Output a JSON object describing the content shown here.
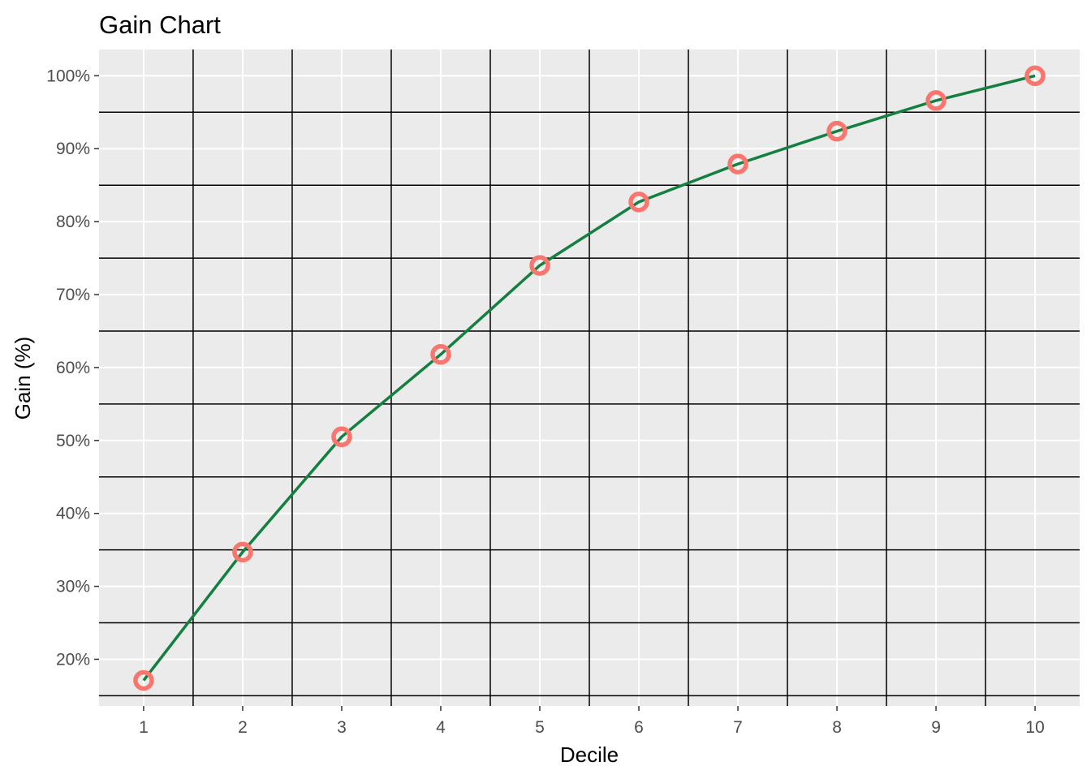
{
  "chart_data": {
    "type": "line",
    "title": "Gain Chart",
    "xlabel": "Decile",
    "ylabel": "Gain (%)",
    "x": [
      1,
      2,
      3,
      4,
      5,
      6,
      7,
      8,
      9,
      10
    ],
    "series": [
      {
        "values": [
          17.1,
          34.7,
          50.5,
          61.8,
          74.0,
          82.7,
          87.9,
          92.4,
          96.6,
          100.0
        ]
      }
    ],
    "y_ticks": [
      20,
      30,
      40,
      50,
      60,
      70,
      80,
      90,
      100
    ],
    "y_tick_labels": [
      "20%",
      "30%",
      "40%",
      "50%",
      "60%",
      "70%",
      "80%",
      "90%",
      "100%"
    ],
    "x_ticks": [
      1,
      2,
      3,
      4,
      5,
      6,
      7,
      8,
      9,
      10
    ],
    "x_tick_labels": [
      "1",
      "2",
      "3",
      "4",
      "5",
      "6",
      "7",
      "8",
      "9",
      "10"
    ],
    "ylim": [
      13.6,
      103.6
    ],
    "xlim": [
      0.55,
      10.45
    ],
    "grid": true,
    "colors": {
      "panel_background": "#EBEBEB",
      "major_grid": "#FFFFFF",
      "minor_grid": "#000000",
      "line": "#148040",
      "points": "#F8766D",
      "tick_text": "#4D4D4D"
    }
  }
}
